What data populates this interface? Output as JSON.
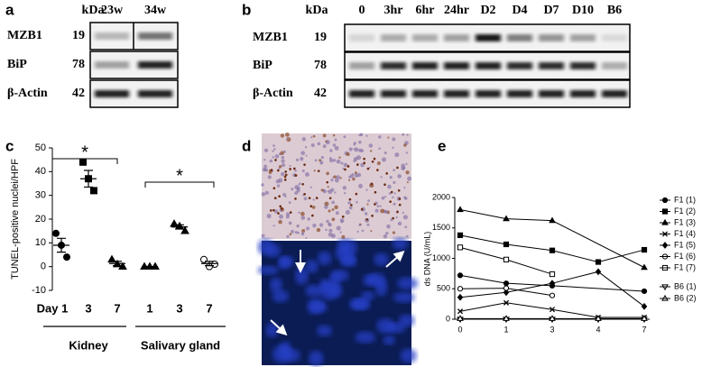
{
  "panels": {
    "a": {
      "label": "a",
      "kda": "kDa",
      "lanes": [
        "23w",
        "34w"
      ],
      "rows": [
        {
          "name": "MZB1",
          "kda": 19
        },
        {
          "name": "BiP",
          "kda": 78
        },
        {
          "name": "β-Actin",
          "kda": 42
        }
      ]
    },
    "b": {
      "label": "b",
      "kda": "kDa",
      "lanes": [
        "0",
        "3hr",
        "6hr",
        "24hr",
        "D2",
        "D4",
        "D7",
        "D10",
        "B6"
      ],
      "rows": [
        {
          "name": "MZB1",
          "kda": 19
        },
        {
          "name": "BiP",
          "kda": 78
        },
        {
          "name": "β-Actin",
          "kda": 42
        }
      ]
    },
    "d": {
      "label": "d"
    }
  },
  "chart_data": [
    {
      "type": "dot",
      "label": "c",
      "ylabel": "TUNEL-positive nuclei/HPF",
      "categories": [
        "Day 1",
        "3",
        "7",
        "1",
        "3",
        "7"
      ],
      "groups": [
        "Kidney",
        "Salivary gland"
      ],
      "markers": [
        "circle",
        "square",
        "triangle",
        "triangle",
        "triangle",
        "open-circle"
      ],
      "values": [
        [
          14,
          9,
          4
        ],
        [
          44,
          37,
          32
        ],
        [
          3,
          1,
          0
        ],
        [
          0,
          0,
          0
        ],
        [
          18,
          17,
          15
        ],
        [
          3,
          0,
          1
        ]
      ],
      "means": [
        9,
        37,
        1.3,
        0,
        16.7,
        1.3
      ],
      "sems": [
        2.9,
        3.5,
        0.9,
        0,
        0.9,
        0.9
      ],
      "annotations": [
        "*",
        "*"
      ],
      "color": "#000000",
      "ylim": [
        -10,
        50
      ],
      "yticks": [
        -10,
        0,
        10,
        20,
        30,
        40,
        50
      ]
    },
    {
      "type": "line",
      "label": "e",
      "ylabel": "ds DNA (U/mL)",
      "categories": [
        "0",
        "1",
        "3",
        "4",
        "7"
      ],
      "ylim": [
        0,
        2000
      ],
      "yticks": [
        0,
        500,
        1000,
        1500,
        2000
      ],
      "series": [
        {
          "name": "F1 (1)",
          "marker": "circle",
          "color": "#000000",
          "x": [
            "0",
            "1",
            "3",
            "7"
          ],
          "values": [
            720,
            590,
            550,
            460
          ]
        },
        {
          "name": "F1 (2)",
          "marker": "square",
          "color": "#000000",
          "x": [
            "0",
            "1",
            "3",
            "4",
            "7"
          ],
          "values": [
            1380,
            1230,
            1130,
            940,
            1140
          ]
        },
        {
          "name": "F1 (3)",
          "marker": "triangle",
          "color": "#000000",
          "x": [
            "0",
            "1",
            "3",
            "7"
          ],
          "values": [
            1800,
            1650,
            1620,
            850
          ]
        },
        {
          "name": "F1 (4)",
          "marker": "x",
          "color": "#000000",
          "x": [
            "0",
            "1",
            "3",
            "4",
            "7"
          ],
          "values": [
            130,
            270,
            160,
            30,
            30
          ]
        },
        {
          "name": "F1 (5)",
          "marker": "diamond",
          "color": "#000000",
          "x": [
            "0",
            "1",
            "3",
            "4",
            "7"
          ],
          "values": [
            360,
            440,
            590,
            780,
            210
          ]
        },
        {
          "name": "F1 (6)",
          "marker": "open-circle",
          "color": "#000000",
          "x": [
            "0",
            "1",
            "3"
          ],
          "values": [
            500,
            510,
            390
          ]
        },
        {
          "name": "F1 (7)",
          "marker": "open-square",
          "color": "#000000",
          "x": [
            "0",
            "1",
            "3"
          ],
          "values": [
            1180,
            980,
            740
          ]
        },
        {
          "name": "B6 (1)",
          "marker": "open-tri-down",
          "color": "#000000",
          "x": [
            "0",
            "1",
            "3",
            "4",
            "7"
          ],
          "values": [
            0,
            0,
            0,
            0,
            0
          ]
        },
        {
          "name": "B6 (2)",
          "marker": "open-triangle",
          "color": "#000000",
          "x": [
            "0",
            "1",
            "3",
            "4",
            "7"
          ],
          "values": [
            10,
            10,
            10,
            10,
            10
          ]
        }
      ]
    }
  ]
}
